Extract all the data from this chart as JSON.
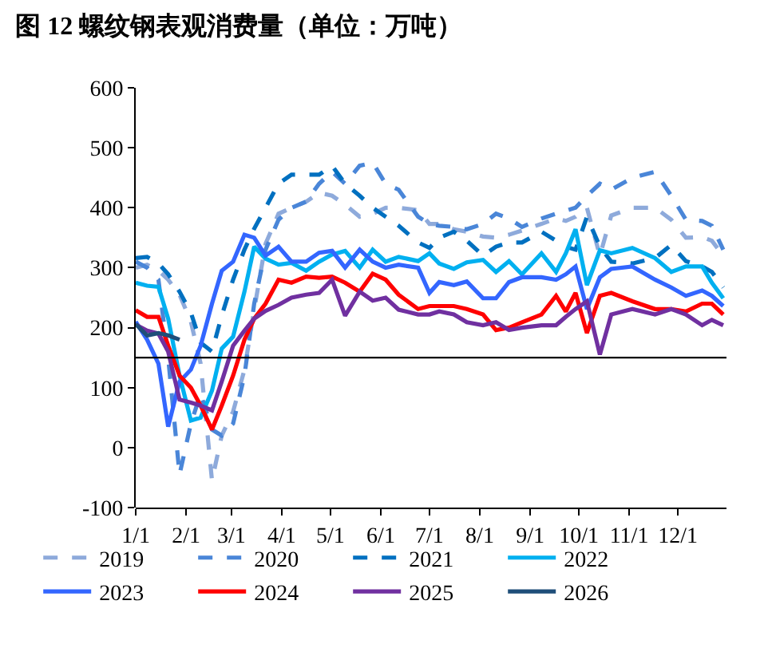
{
  "chart_data": {
    "type": "line",
    "title": "图 12 螺纹钢表观消费量（单位：万吨）",
    "x": [
      "--01-01",
      "--01-08",
      "--01-15",
      "--01-21",
      "--01-28",
      "--02-04",
      "--02-10",
      "--02-17",
      "--02-23",
      "--03-02",
      "--03-09",
      "--03-15",
      "--03-22",
      "--03-30",
      "--04-07",
      "--04-16",
      "--04-24",
      "--05-02",
      "--05-10",
      "--05-19",
      "--05-27",
      "--06-04",
      "--06-12",
      "--06-24",
      "--07-01",
      "--07-07",
      "--07-16",
      "--07-24",
      "--08-03",
      "--08-11",
      "--08-19",
      "--08-27",
      "--09-08",
      "--09-17",
      "--09-23",
      "--09-29",
      "--10-06",
      "--10-14",
      "--10-21",
      "--11-03",
      "--11-17",
      "--11-27",
      "--12-06",
      "--12-16",
      "--12-22",
      "--12-29"
    ],
    "series": [
      {
        "name": "2019",
        "color": "#8eaadb",
        "line_style": "dashed",
        "values": [
          300,
          305,
          295,
          280,
          255,
          210,
          140,
          -55,
          20,
          60,
          130,
          230,
          340,
          390,
          400,
          410,
          425,
          420,
          405,
          385,
          390,
          400,
          400,
          396,
          373,
          373,
          364,
          360,
          352,
          350,
          355,
          362,
          373,
          382,
          378,
          385,
          400,
          320,
          387,
          400,
          400,
          380,
          350,
          351,
          345,
          320
        ]
      },
      {
        "name": "2020",
        "color": "#4a86d8",
        "line_style": "dashed",
        "values": [
          310,
          300,
          280,
          150,
          -45,
          40,
          90,
          30,
          20,
          40,
          120,
          240,
          330,
          380,
          400,
          410,
          440,
          460,
          440,
          470,
          475,
          440,
          430,
          385,
          373,
          370,
          368,
          364,
          373,
          390,
          382,
          368,
          382,
          390,
          395,
          400,
          420,
          440,
          430,
          450,
          460,
          420,
          380,
          378,
          370,
          330
        ]
      },
      {
        "name": "2021",
        "color": "#0070c0",
        "line_style": "dashed",
        "values": [
          316,
          318,
          307,
          289,
          260,
          225,
          175,
          160,
          220,
          280,
          330,
          365,
          400,
          440,
          455,
          455,
          455,
          470,
          440,
          420,
          400,
          385,
          370,
          342,
          333,
          350,
          360,
          345,
          320,
          335,
          342,
          342,
          360,
          345,
          335,
          330,
          385,
          335,
          310,
          307,
          316,
          338,
          311,
          302,
          293,
          267
        ]
      },
      {
        "name": "2022",
        "color": "#00b0f0",
        "line_style": "solid",
        "values": [
          275,
          270,
          268,
          215,
          120,
          45,
          50,
          95,
          165,
          185,
          260,
          335,
          315,
          305,
          308,
          295,
          310,
          322,
          328,
          300,
          330,
          310,
          318,
          311,
          324,
          307,
          298,
          309,
          313,
          293,
          311,
          289,
          324,
          293,
          324,
          364,
          271,
          329,
          324,
          333,
          316,
          293,
          302,
          302,
          275,
          249
        ]
      },
      {
        "name": "2023",
        "color": "#3366ff",
        "line_style": "solid",
        "values": [
          210,
          180,
          140,
          35,
          110,
          130,
          170,
          240,
          295,
          310,
          355,
          350,
          320,
          335,
          310,
          310,
          325,
          328,
          300,
          330,
          310,
          300,
          305,
          300,
          258,
          276,
          271,
          277,
          249,
          249,
          276,
          284,
          284,
          280,
          289,
          302,
          231,
          284,
          298,
          302,
          280,
          267,
          253,
          262,
          253,
          236
        ]
      },
      {
        "name": "2024",
        "color": "#ff0000",
        "line_style": "solid",
        "values": [
          229,
          218,
          218,
          170,
          120,
          100,
          70,
          30,
          70,
          120,
          180,
          215,
          240,
          280,
          275,
          285,
          283,
          285,
          275,
          260,
          290,
          280,
          255,
          231,
          236,
          236,
          236,
          231,
          222,
          196,
          200,
          209,
          222,
          253,
          227,
          258,
          191,
          253,
          258,
          244,
          231,
          231,
          227,
          240,
          240,
          222
        ]
      },
      {
        "name": "2025",
        "color": "#7030a0",
        "line_style": "solid",
        "values": [
          205,
          195,
          190,
          160,
          80,
          75,
          70,
          62,
          110,
          170,
          195,
          215,
          228,
          238,
          250,
          255,
          258,
          280,
          220,
          260,
          245,
          250,
          230,
          222,
          222,
          227,
          222,
          209,
          204,
          209,
          196,
          200,
          204,
          204,
          218,
          231,
          244,
          155,
          222,
          231,
          222,
          231,
          222,
          204,
          213,
          204
        ]
      },
      {
        "name": "2026",
        "color": "#1f4e79",
        "line_style": "solid",
        "values": [
          206,
          187,
          191,
          187,
          180,
          null,
          null,
          null,
          null,
          null,
          null,
          null,
          null,
          null,
          null,
          null,
          null,
          null,
          null,
          null,
          null,
          null,
          null,
          null,
          null,
          null,
          null,
          null,
          null,
          null,
          null,
          null,
          null,
          null,
          null,
          null,
          null,
          null,
          null,
          null,
          null,
          null,
          null,
          null,
          null,
          null
        ]
      }
    ],
    "xlim": [
      "--01-01",
      "--12-31"
    ],
    "xticks": [
      {
        "value": "--01-01",
        "label": "1/1"
      },
      {
        "value": "--02-01",
        "label": "2/1"
      },
      {
        "value": "--03-01",
        "label": "3/1"
      },
      {
        "value": "--04-01",
        "label": "4/1"
      },
      {
        "value": "--05-01",
        "label": "5/1"
      },
      {
        "value": "--06-01",
        "label": "6/1"
      },
      {
        "value": "--07-01",
        "label": "7/1"
      },
      {
        "value": "--08-01",
        "label": "8/1"
      },
      {
        "value": "--09-01",
        "label": "9/1"
      },
      {
        "value": "--10-01",
        "label": "10/1"
      },
      {
        "value": "--11-01",
        "label": "11/1"
      },
      {
        "value": "--12-01",
        "label": "12/1"
      }
    ],
    "ylim": [
      -100,
      600
    ],
    "yticks": [
      -100,
      0,
      100,
      200,
      300,
      400,
      500,
      600
    ],
    "ref_lines": [
      {
        "axis": "y",
        "value": 150,
        "color": "#000000"
      }
    ],
    "grid": false,
    "legend": "bottom",
    "marker": "none"
  }
}
